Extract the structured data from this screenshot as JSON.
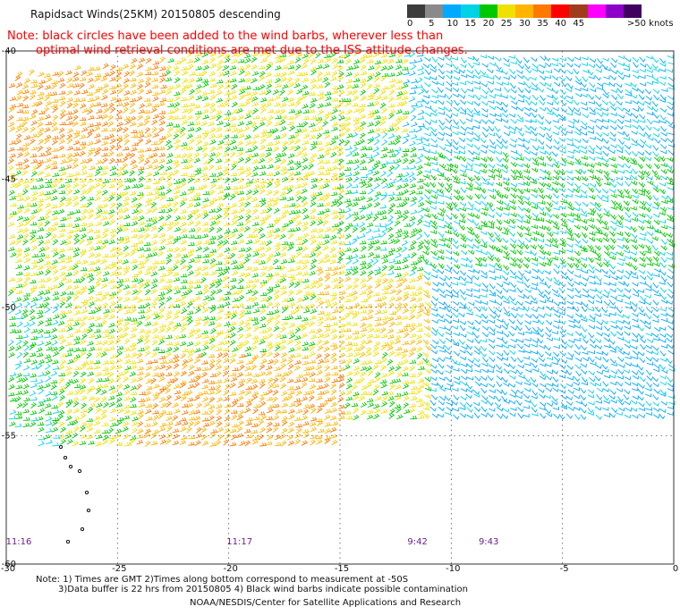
{
  "title": "Rapidsact Winds(25KM) 20150805 descending",
  "note": {
    "line1": "Note: black circles have been added to the wind barbs, wherever less than",
    "line2": "optimal wind retrieval conditions are met due to the ISS attitude changes."
  },
  "legend": {
    "bins": [
      {
        "label": "0",
        "color": "#3c3c3c"
      },
      {
        "label": "5",
        "color": "#8a8a8a"
      },
      {
        "label": "10",
        "color": "#00aaff"
      },
      {
        "label": "15",
        "color": "#00d2e6"
      },
      {
        "label": "20",
        "color": "#00c800"
      },
      {
        "label": "25",
        "color": "#f0e000"
      },
      {
        "label": "30",
        "color": "#ffb400"
      },
      {
        "label": "35",
        "color": "#ff7800"
      },
      {
        "label": "40",
        "color": "#ff0000"
      },
      {
        "label": "45",
        "color": "#a03c1e"
      },
      {
        "label": "",
        "color": "#ff00ff"
      },
      {
        "label": "",
        "color": "#8c00c8"
      },
      {
        "label": ">50 knots",
        "color": "#400060"
      }
    ]
  },
  "map": {
    "lat_labels": [
      "-40",
      "-45",
      "-50",
      "-55",
      "-60"
    ],
    "lon_labels": [
      "-30",
      "-25",
      "-20",
      "-15",
      "-10",
      "-5",
      "0"
    ],
    "lat_range": [
      -60,
      -40
    ],
    "lon_range": [
      -30,
      0
    ],
    "time_labels": [
      {
        "text": "11:16",
        "lon": -30
      },
      {
        "text": "11:17",
        "lon": -20
      },
      {
        "text": "9:42",
        "lon": -12
      },
      {
        "text": "9:43",
        "lon": -8.8
      }
    ]
  },
  "footnotes": {
    "line1": "Note: 1) Times are GMT 2)Times along bottom correspond to measurement at -50S",
    "line2": "3)Data buffer is 22 hrs from 20150805 4) Black wind barbs indicate possible contamination",
    "credit": "NOAA/NESDIS/Center for Satellite Applications and Research"
  }
}
